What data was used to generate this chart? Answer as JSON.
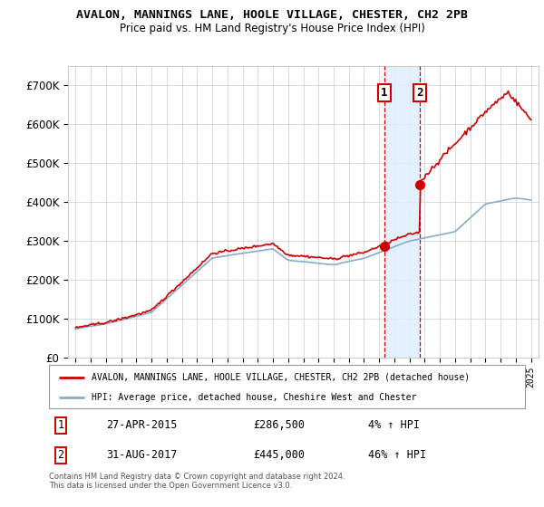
{
  "title": "AVALON, MANNINGS LANE, HOOLE VILLAGE, CHESTER, CH2 2PB",
  "subtitle": "Price paid vs. HM Land Registry's House Price Index (HPI)",
  "legend_line1": "AVALON, MANNINGS LANE, HOOLE VILLAGE, CHESTER, CH2 2PB (detached house)",
  "legend_line2": "HPI: Average price, detached house, Cheshire West and Chester",
  "transaction1_date": "27-APR-2015",
  "transaction1_price": "£286,500",
  "transaction1_hpi": "4% ↑ HPI",
  "transaction2_date": "31-AUG-2017",
  "transaction2_price": "£445,000",
  "transaction2_hpi": "46% ↑ HPI",
  "footer": "Contains HM Land Registry data © Crown copyright and database right 2024.\nThis data is licensed under the Open Government Licence v3.0.",
  "line_color_red": "#cc0000",
  "line_color_blue": "#88aacc",
  "shading_color": "#ddeeff",
  "vline_color": "#cc0000",
  "ylim": [
    0,
    750000
  ],
  "yticks": [
    0,
    100000,
    200000,
    300000,
    400000,
    500000,
    600000,
    700000
  ],
  "ytick_labels": [
    "£0",
    "£100K",
    "£200K",
    "£300K",
    "£400K",
    "£500K",
    "£600K",
    "£700K"
  ],
  "background_color": "#ffffff",
  "grid_color": "#cccccc",
  "t1_year": 2015.33,
  "t1_price": 286500,
  "t2_year": 2017.67,
  "t2_price": 445000
}
